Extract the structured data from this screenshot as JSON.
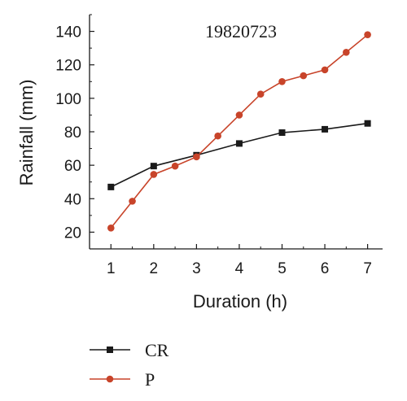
{
  "chart_data": {
    "type": "line",
    "title": "19820723",
    "xlabel": "Duration (h)",
    "ylabel": "Rainfall (mm)",
    "xlim": [
      0.5,
      7.35
    ],
    "ylim": [
      10,
      150
    ],
    "xticks": [
      1,
      2,
      3,
      4,
      5,
      6,
      7
    ],
    "yticks": [
      20,
      40,
      60,
      80,
      100,
      120,
      140
    ],
    "grid": false,
    "legend_position": "bottom-left",
    "series": [
      {
        "name": "CR",
        "color": "#1a1a1a",
        "marker": "square",
        "x": [
          1,
          2,
          3,
          4,
          5,
          6,
          7
        ],
        "y": [
          47,
          59.5,
          66,
          73,
          79.5,
          81.5,
          85
        ]
      },
      {
        "name": "P",
        "color": "#c8442a",
        "marker": "circle",
        "x": [
          1,
          1.5,
          2,
          2.5,
          3,
          3.5,
          4,
          4.5,
          5,
          5.5,
          6,
          6.5,
          7
        ],
        "y": [
          22.5,
          38.5,
          54.5,
          59.5,
          65,
          77.5,
          90,
          102.5,
          110,
          113.5,
          117,
          127.5,
          138
        ]
      }
    ]
  }
}
